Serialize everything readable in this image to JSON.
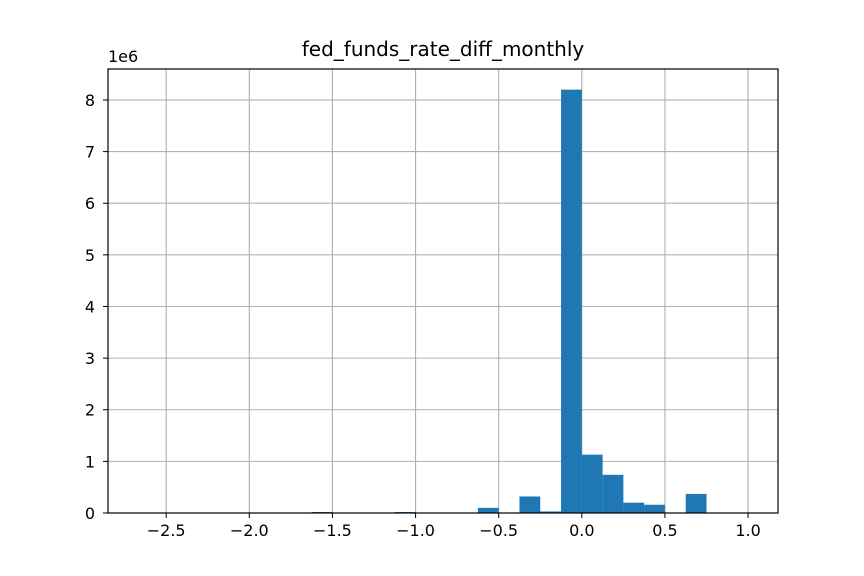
{
  "chart_data": {
    "type": "bar",
    "title": "fed_funds_rate_diff_monthly",
    "xlabel": "",
    "ylabel": "",
    "y_offset_label": "1e6",
    "y_multiplier": 1000000,
    "grid": true,
    "bar_color": "#1f77b4",
    "xlim": [
      -2.85,
      1.18
    ],
    "ylim": [
      0,
      8.6
    ],
    "x_ticks": [
      {
        "value": -2.5,
        "label": "−2.5"
      },
      {
        "value": -2.0,
        "label": "−2.0"
      },
      {
        "value": -1.5,
        "label": "−1.5"
      },
      {
        "value": -1.0,
        "label": "−1.0"
      },
      {
        "value": -0.5,
        "label": "−0.5"
      },
      {
        "value": 0.0,
        "label": "0.0"
      },
      {
        "value": 0.5,
        "label": "0.5"
      },
      {
        "value": 1.0,
        "label": "1.0"
      }
    ],
    "y_ticks": [
      {
        "value": 0,
        "label": "0"
      },
      {
        "value": 1,
        "label": "1"
      },
      {
        "value": 2,
        "label": "2"
      },
      {
        "value": 3,
        "label": "3"
      },
      {
        "value": 4,
        "label": "4"
      },
      {
        "value": 5,
        "label": "5"
      },
      {
        "value": 6,
        "label": "6"
      },
      {
        "value": 7,
        "label": "7"
      },
      {
        "value": 8,
        "label": "8"
      }
    ],
    "bins": [
      {
        "start": -1.625,
        "end": -1.5,
        "value": 0.02
      },
      {
        "start": -1.125,
        "end": -1.0,
        "value": 0.02
      },
      {
        "start": -0.625,
        "end": -0.5,
        "value": 0.1
      },
      {
        "start": -0.375,
        "end": -0.25,
        "value": 0.32
      },
      {
        "start": -0.25,
        "end": -0.125,
        "value": 0.03
      },
      {
        "start": -0.125,
        "end": 0.0,
        "value": 8.2
      },
      {
        "start": 0.0,
        "end": 0.125,
        "value": 1.13
      },
      {
        "start": 0.125,
        "end": 0.25,
        "value": 0.74
      },
      {
        "start": 0.25,
        "end": 0.375,
        "value": 0.2
      },
      {
        "start": 0.375,
        "end": 0.5,
        "value": 0.16
      },
      {
        "start": 0.625,
        "end": 0.75,
        "value": 0.37
      }
    ]
  }
}
